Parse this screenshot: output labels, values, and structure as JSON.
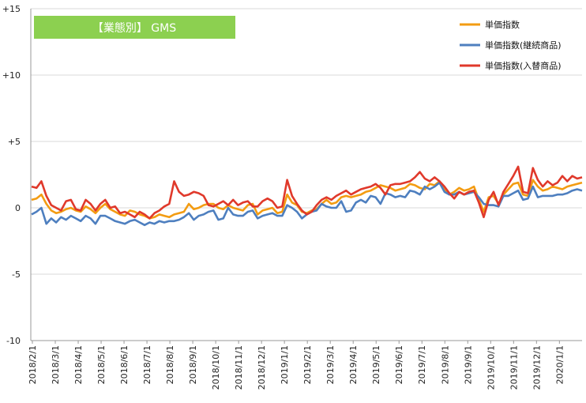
{
  "chart_data": {
    "type": "line",
    "banner": {
      "label": "【業態別】 GMS",
      "color": "#8cd050"
    },
    "y_ticks": [
      "+15",
      "+10",
      "+5",
      "0",
      "-5",
      "-10"
    ],
    "y_tick_values": [
      15,
      10,
      5,
      0,
      -5,
      -10
    ],
    "ylim": [
      -10,
      15
    ],
    "x_labels": [
      "2018/2/1",
      "2018/3/1",
      "2018/4/1",
      "2018/5/1",
      "2018/6/1",
      "2018/7/1",
      "2018/8/1",
      "2018/9/1",
      "2018/10/1",
      "2018/11/1",
      "2018/12/1",
      "2019/1/1",
      "2019/2/1",
      "2019/3/1",
      "2019/4/1",
      "2019/5/1",
      "2019/6/1",
      "2019/7/1",
      "2019/8/1",
      "2019/9/1",
      "2019/10/1",
      "2019/11/1",
      "2019/12/1",
      "2020/1/1"
    ],
    "grid": "horizontal",
    "legend_position": "top-right",
    "series": [
      {
        "name": "単価指数",
        "color": "#f39c12",
        "values": [
          0.6,
          0.7,
          1.0,
          0.3,
          -0.2,
          -0.4,
          -0.3,
          -0.1,
          0.0,
          -0.2,
          -0.3,
          0.1,
          -0.1,
          -0.4,
          0.0,
          0.3,
          -0.1,
          -0.3,
          -0.5,
          -0.6,
          -0.2,
          -0.3,
          -0.5,
          -0.6,
          -0.8,
          -0.7,
          -0.5,
          -0.6,
          -0.7,
          -0.5,
          -0.4,
          -0.3,
          0.3,
          -0.1,
          0.0,
          0.2,
          0.3,
          0.3,
          0.0,
          -0.1,
          0.2,
          0.0,
          -0.1,
          -0.2,
          0.2,
          0.3,
          -0.5,
          -0.2,
          -0.1,
          0.0,
          -0.4,
          -0.3,
          1.0,
          0.4,
          0.2,
          -0.3,
          -0.4,
          -0.2,
          -0.1,
          0.3,
          0.6,
          0.3,
          0.4,
          0.8,
          0.9,
          0.8,
          0.9,
          1.0,
          1.2,
          1.3,
          1.5,
          1.7,
          1.6,
          1.5,
          1.3,
          1.4,
          1.5,
          1.8,
          1.7,
          1.5,
          1.4,
          1.8,
          1.7,
          2.0,
          1.4,
          1.0,
          1.2,
          1.5,
          1.3,
          1.4,
          1.6,
          0.6,
          -0.3,
          0.8,
          0.9,
          0.3,
          1.0,
          1.4,
          1.8,
          1.9,
          1.0,
          0.9,
          2.1,
          1.6,
          1.3,
          1.4,
          1.6,
          1.5,
          1.4,
          1.6,
          1.7,
          1.8,
          1.9
        ],
        "x_dense": true
      },
      {
        "name": "単価指数(継続商品)",
        "color": "#4e7fbf",
        "values": [
          -0.5,
          -0.3,
          0.0,
          -1.2,
          -0.8,
          -1.1,
          -0.7,
          -0.9,
          -0.6,
          -0.8,
          -1.0,
          -0.6,
          -0.8,
          -1.2,
          -0.6,
          -0.6,
          -0.8,
          -1.0,
          -1.1,
          -1.2,
          -1.0,
          -0.9,
          -1.1,
          -1.3,
          -1.1,
          -1.2,
          -1.0,
          -1.1,
          -1.0,
          -1.0,
          -0.9,
          -0.7,
          -0.4,
          -0.9,
          -0.6,
          -0.5,
          -0.3,
          -0.2,
          -0.9,
          -0.8,
          0.0,
          -0.5,
          -0.6,
          -0.6,
          -0.3,
          -0.2,
          -0.8,
          -0.6,
          -0.5,
          -0.4,
          -0.6,
          -0.6,
          0.2,
          0.0,
          -0.3,
          -0.8,
          -0.5,
          -0.3,
          -0.2,
          0.3,
          0.1,
          0.0,
          0.0,
          0.5,
          -0.3,
          -0.2,
          0.4,
          0.6,
          0.4,
          0.9,
          0.8,
          0.3,
          1.1,
          1.0,
          0.8,
          0.9,
          0.8,
          1.3,
          1.2,
          1.0,
          1.6,
          1.4,
          1.6,
          1.9,
          1.2,
          1.0,
          1.0,
          1.2,
          1.0,
          1.1,
          1.2,
          0.8,
          0.3,
          0.2,
          0.2,
          0.1,
          0.9,
          0.9,
          1.1,
          1.3,
          0.6,
          0.7,
          1.6,
          0.8,
          0.9,
          0.9,
          0.9,
          1.0,
          1.0,
          1.1,
          1.3,
          1.4,
          1.3
        ],
        "x_dense": true
      },
      {
        "name": "単価指数(入替商品)",
        "color": "#e0392b",
        "values": [
          1.6,
          1.5,
          2.0,
          0.9,
          0.2,
          0.0,
          -0.2,
          0.5,
          0.6,
          -0.1,
          -0.2,
          0.6,
          0.3,
          -0.2,
          0.3,
          0.6,
          0.0,
          0.1,
          -0.4,
          -0.3,
          -0.5,
          -0.7,
          -0.3,
          -0.5,
          -0.8,
          -0.4,
          -0.2,
          0.1,
          0.3,
          2.0,
          1.2,
          0.9,
          1.0,
          1.2,
          1.1,
          0.9,
          0.2,
          0.1,
          0.3,
          0.5,
          0.2,
          0.6,
          0.2,
          0.4,
          0.5,
          0.1,
          0.1,
          0.5,
          0.7,
          0.5,
          0.0,
          0.1,
          2.1,
          0.9,
          0.3,
          -0.2,
          -0.5,
          -0.3,
          0.2,
          0.6,
          0.8,
          0.6,
          0.9,
          1.1,
          1.3,
          1.0,
          1.2,
          1.4,
          1.5,
          1.6,
          1.8,
          1.5,
          1.0,
          1.7,
          1.8,
          1.8,
          1.9,
          2.0,
          2.3,
          2.7,
          2.2,
          2.0,
          2.3,
          2.0,
          1.6,
          1.1,
          0.7,
          1.2,
          1.0,
          1.2,
          1.3,
          0.4,
          -0.7,
          0.6,
          1.2,
          0.2,
          1.2,
          1.8,
          2.4,
          3.1,
          1.2,
          1.1,
          3.0,
          2.1,
          1.6,
          2.0,
          1.7,
          1.9,
          2.4,
          2.0,
          2.4,
          2.2,
          2.3
        ],
        "x_dense": true
      }
    ]
  }
}
